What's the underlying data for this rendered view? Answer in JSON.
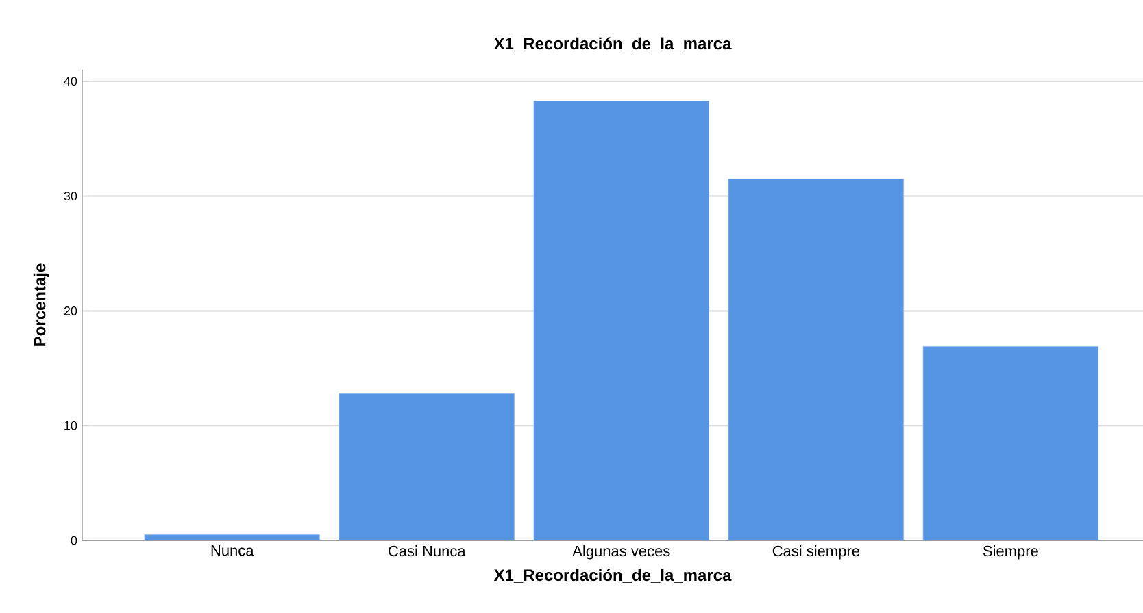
{
  "chart_data": {
    "type": "bar",
    "title": "X1_Recordación_de_la_marca",
    "xlabel": "X1_Recordación_de_la_marca",
    "ylabel": "Porcentaje",
    "categories": [
      "Nunca",
      "Casi Nunca",
      "Algunas veces",
      "Casi siempre",
      "Siempre"
    ],
    "values": [
      0.5,
      12.8,
      38.3,
      31.5,
      16.9
    ],
    "color": "#5595e3",
    "ylim": [
      0,
      41
    ],
    "yticks": [
      0,
      10,
      20,
      30,
      40
    ],
    "grid": "y"
  }
}
